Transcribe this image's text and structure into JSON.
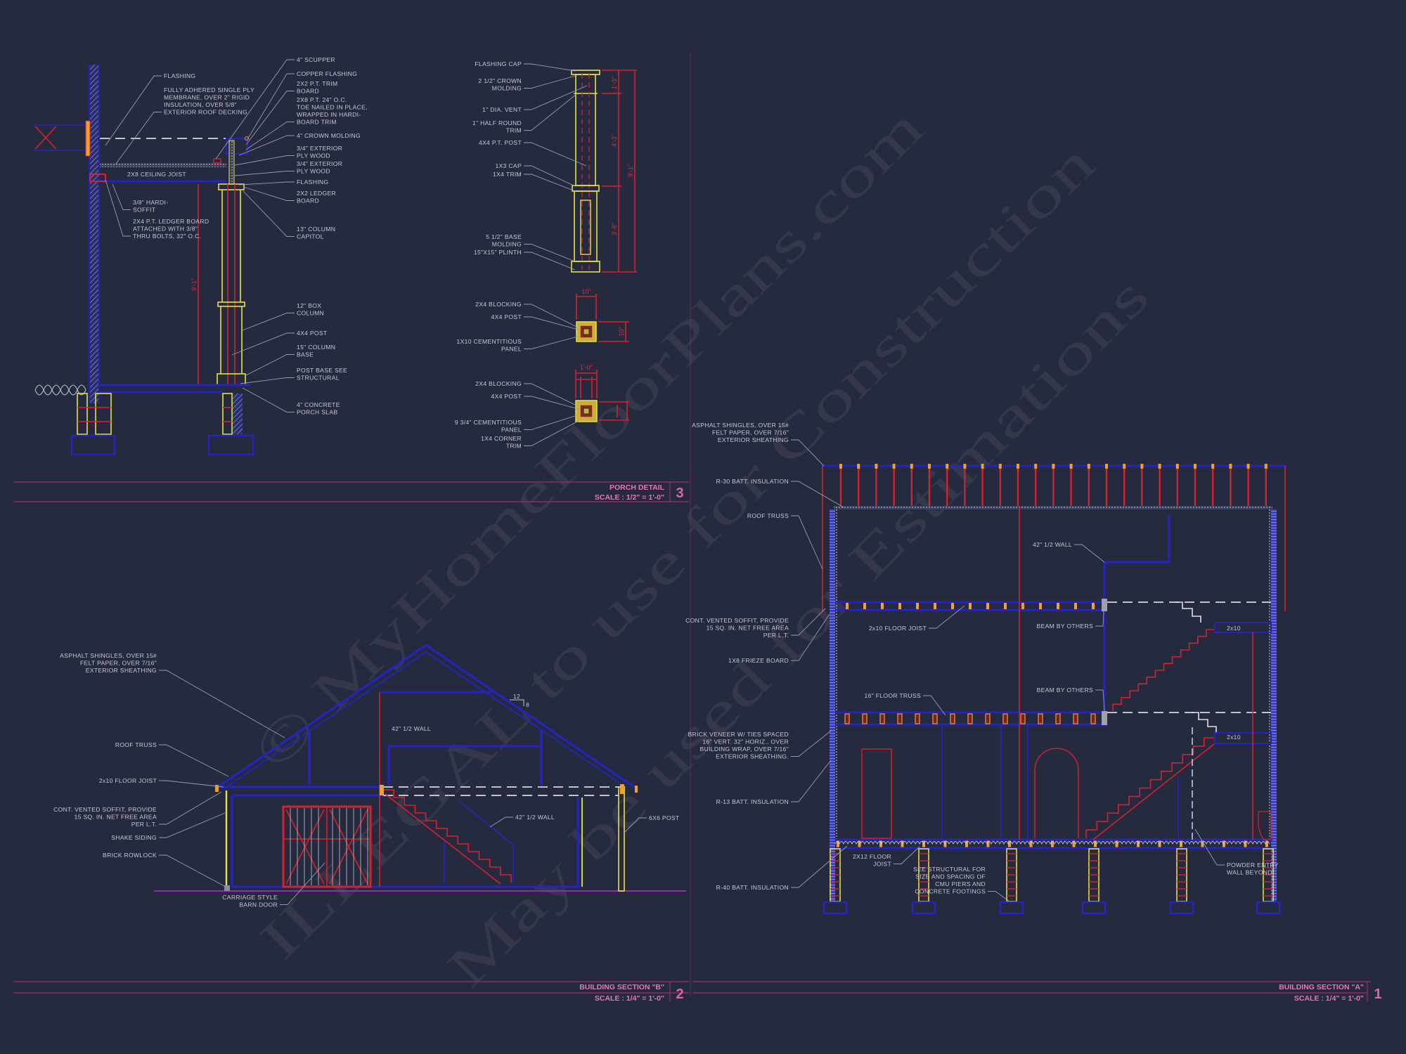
{
  "colors": {
    "background": "#262a3e",
    "framing_blue": "#2424c4",
    "members_red": "#d4222e",
    "wood_yellow": "#e4e244",
    "blocking_orange": "#f0a030",
    "annotation_text": "#c6c8d6",
    "title_pink": "#e874bb",
    "ground_line": "#a020c8",
    "insulation": "#8a92e8"
  },
  "watermark": [
    "© MyHomeFloorPlans.com",
    "ILLEGAL to use for Construction",
    "May be used for Estimations"
  ],
  "porch_detail": {
    "title": "PORCH DETAIL",
    "scale": "SCALE : 1/2\" = 1'-0\"",
    "number": "3",
    "labels": {
      "flashing": [
        "FLASHING"
      ],
      "membrane": [
        "FULLY ADHERED SINGLE PLY",
        "MEMBRANE, OVER 2\" RIGID",
        "INSULATION, OVER 5/8\"",
        "EXTERIOR ROOF DECKING"
      ],
      "ceiling_joist": [
        "2X8 CEILING JOIST"
      ],
      "hardi_soffit": [
        "3/8\" HARDI-",
        "SOFFIT"
      ],
      "ledger_board": [
        "2X4 P.T. LEDGER BOARD",
        "ATTACHED WITH 3/8\"",
        "THRU BOLTS, 32\" O.C."
      ],
      "scupper": [
        "4\" SCUPPER"
      ],
      "copper_flashing": [
        "COPPER FLASHING"
      ],
      "trim_board": [
        "2X2 P.T. TRIM",
        "BOARD"
      ],
      "p_t_2x8": [
        "2X8 P.T. 24\" O.C.",
        "TOE NAILED IN PLACE,",
        "WRAPPED IN HARDI-",
        "BOARD TRIM"
      ],
      "crown_molding": [
        "4\" CROWN MOLDING"
      ],
      "plywood_1": [
        "3/4\" EXTERIOR",
        "PLY WOOD"
      ],
      "plywood_2": [
        "3/4\" EXTERIOR",
        "PLY WOOD"
      ],
      "flashing_2": [
        "FLASHING"
      ],
      "ledger_2x2": [
        "2X2 LEDGER",
        "BOARD"
      ],
      "column_capitol": [
        "13\" COLUMN",
        "CAPITOL"
      ],
      "box_column": [
        "12\" BOX",
        "COLUMN"
      ],
      "post_4x4": [
        "4X4 POST"
      ],
      "column_base": [
        "15\" COLUMN",
        "BASE"
      ],
      "post_base": [
        "POST BASE SEE",
        "STRUCTURAL"
      ],
      "porch_slab": [
        "4\" CONCRETE",
        "PORCH SLAB"
      ]
    },
    "column_labels": {
      "flashing_cap": [
        "FLASHING CAP"
      ],
      "crown_molding": [
        "2 1/2\" CROWN",
        "MOLDING"
      ],
      "dia_vent": [
        "1\" DIA. VENT"
      ],
      "half_round_trim": [
        "1\" HALF ROUND",
        "TRIM"
      ],
      "pt_post": [
        "4X4 P.T. POST"
      ],
      "cap_1x3": [
        "1X3 CAP"
      ],
      "trim_1x4": [
        "1X4 TRIM"
      ],
      "base_molding": [
        "5 1/2\" BASE",
        "MOLDING"
      ],
      "plinth": [
        "15\"X15\" PLINTH"
      ],
      "blocking_1": [
        "2X4 BLOCKING"
      ],
      "post_1": [
        "4X4 POST"
      ],
      "panel_1": [
        "1X10 CEMENTITIOUS",
        "PANEL"
      ],
      "blocking_2": [
        "2X4 BLOCKING"
      ],
      "post_2": [
        "4X4 POST"
      ],
      "panel_2": [
        "9 3/4\" CEMENTITIOUS",
        "PANEL"
      ],
      "corner_trim": [
        "1X4 CORNER",
        "TRIM"
      ]
    },
    "dimensions": {
      "porch_height": "9'-1\"",
      "capital_height": "1'-3\"",
      "shaft_height": "4'-3\"",
      "base_height": "3'-8\"",
      "column_total": "9'-1\"",
      "plan_1_width": "10\"",
      "plan_1_depth": "10\"",
      "plan_2_width": "1'-0\""
    }
  },
  "section_b": {
    "title": "BUILDING SECTION \"B\"",
    "scale": "SCALE : 1/4\" = 1'-0\"",
    "number": "2",
    "slope": {
      "run": "12",
      "rise": "8"
    },
    "labels": {
      "shingles": [
        "ASPHALT SHINGLES, OVER 15#",
        "FELT PAPER, OVER 7/16\"",
        "EXTERIOR SHEATHING"
      ],
      "roof_truss": [
        "ROOF TRUSS"
      ],
      "floor_joist": [
        "2x10 FLOOR JOIST"
      ],
      "soffit": [
        "CONT. VENTED SOFFIT, PROVIDE",
        "15 SQ. IN. NET FREE AREA",
        "PER L.T."
      ],
      "shake_siding": [
        "SHAKE SIDING"
      ],
      "brick_rowlock": [
        "BRICK ROWLOCK"
      ],
      "barn_door": [
        "CARRIAGE STYLE",
        "BARN DOOR"
      ],
      "half_wall_upper": [
        "42\" 1/2 WALL"
      ],
      "half_wall_lower": [
        "42\" 1/2 WALL"
      ],
      "post_6x6": [
        "6X6 POST"
      ]
    }
  },
  "section_a": {
    "title": "BUILDING SECTION \"A\"",
    "scale": "SCALE : 1/4\" = 1'-0\"",
    "number": "1",
    "labels": {
      "shingles": [
        "ASPHALT SHINGLES, OVER 15#",
        "FELT PAPER, OVER 7/16\"",
        "EXTERIOR SHEATHING"
      ],
      "r30": [
        "R-30 BATT. INSULATION"
      ],
      "roof_truss": [
        "ROOF TRUSS"
      ],
      "soffit": [
        "CONT. VENTED SOFFIT, PROVIDE",
        "15 SQ. IN. NET FREE AREA",
        "PER L.T."
      ],
      "frieze_board": [
        "1X8 FRIEZE BOARD"
      ],
      "brick_veneer": [
        "BRICK VENEER W/ TIES SPACED",
        "16\" VERT. 32\" HORIZ., OVER",
        "BUILDING WRAP, OVER 7/16\"",
        "EXTERIOR SHEATHING."
      ],
      "r13": [
        "R-13 BATT. INSULATION"
      ],
      "r40": [
        "R-40 BATT. INSULATION"
      ],
      "floor_joist": [
        "2x10 FLOOR JOIST"
      ],
      "floor_truss": [
        "16\" FLOOR TRUSS"
      ],
      "half_wall": [
        "42\" 1/2 WALL"
      ],
      "beam_upper": [
        "BEAM BY OTHERS"
      ],
      "beam_lower": [
        "BEAM BY OTHERS"
      ],
      "landing_upper": [
        "2x10"
      ],
      "landing_lower": [
        "2x10"
      ],
      "floor_joist_2x12": [
        "2X12 FLOOR",
        "JOIST"
      ],
      "structural": [
        "SEE STRUCTURAL FOR",
        "SIZE AND SPACING OF",
        "CMU PIERS AND",
        "CONCRETE FOOTINGS"
      ],
      "powder_wall": [
        "POWDER ENTRY",
        "WALL BEYOND"
      ]
    }
  }
}
